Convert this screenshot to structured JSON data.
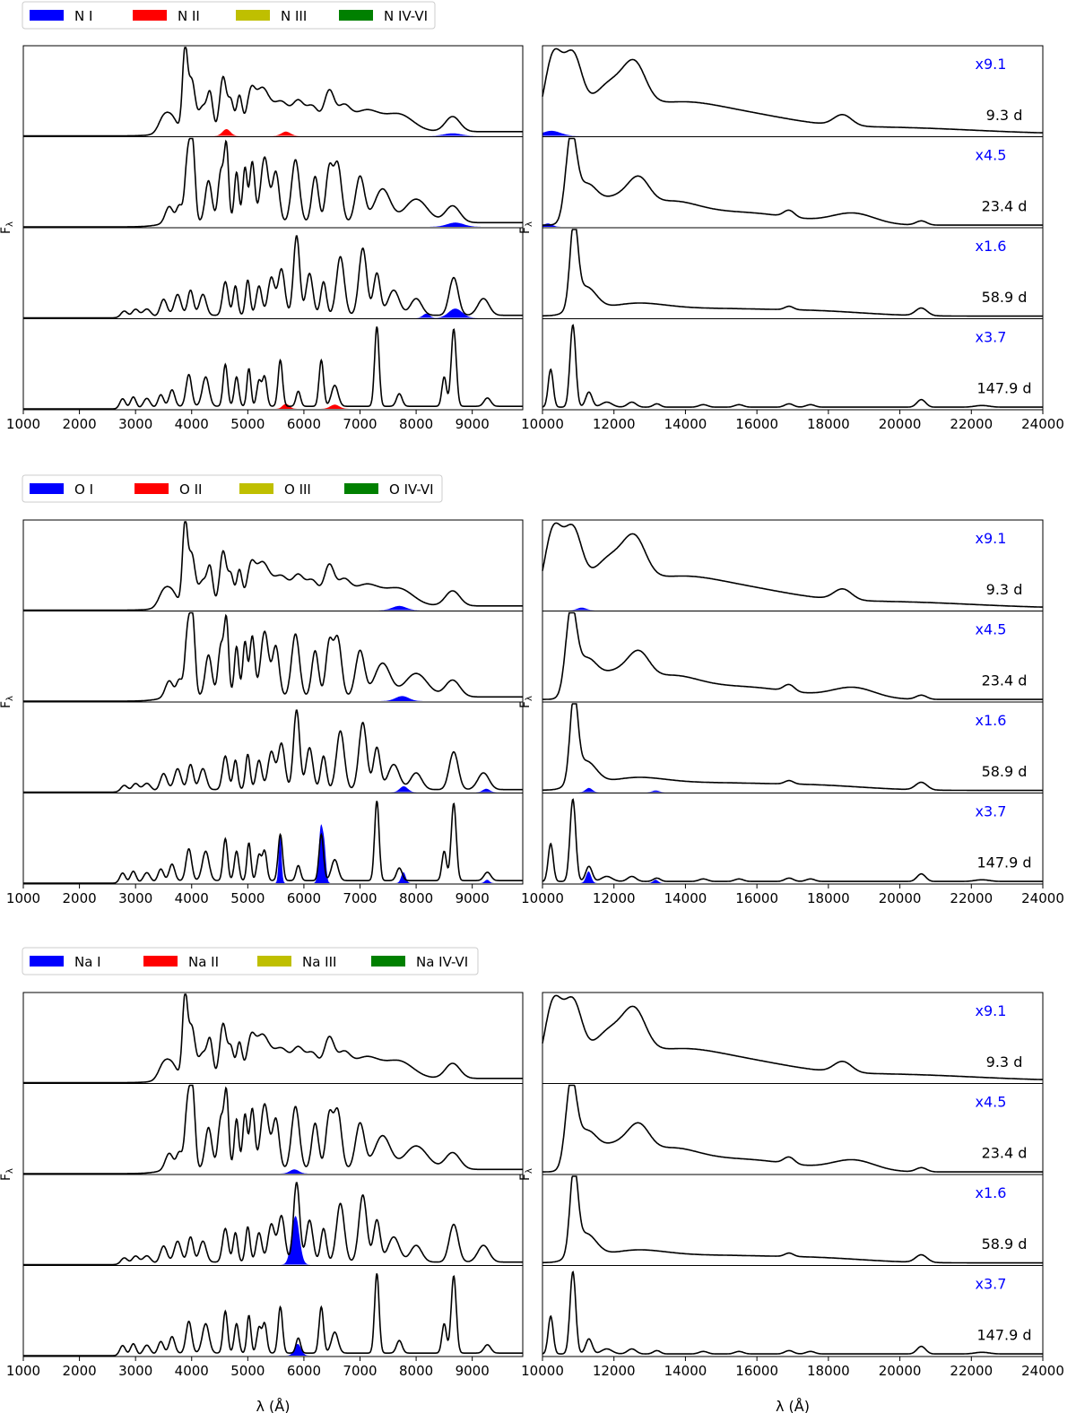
{
  "figure": {
    "y_axis_label": "F",
    "y_axis_label_subscript": "λ",
    "x_axis_label": "λ (Å)",
    "epochs": [
      "9.3 d",
      "23.4 d",
      "58.9 d",
      "147.9 d"
    ],
    "scale_factors": [
      "x9.1",
      "x4.5",
      "x1.6",
      "x3.7"
    ],
    "ion_colors": [
      "#0000ff",
      "#ff0000",
      "#bfbf00",
      "#008000"
    ],
    "scale_label_color": "#0000ff"
  },
  "chart_data": [
    {
      "type": "line",
      "element": "N",
      "legend": [
        "N I",
        "N II",
        "N III",
        "N IV-VI"
      ],
      "x_optical": {
        "lim": [
          1000,
          9900
        ],
        "ticks": [
          1000,
          2000,
          3000,
          4000,
          5000,
          6000,
          7000,
          8000,
          9000
        ]
      },
      "x_ir": {
        "lim": [
          10000,
          24000
        ],
        "ticks": [
          10000,
          12000,
          14000,
          16000,
          18000,
          20000,
          22000,
          24000
        ]
      },
      "ion_contributions": [
        {
          "epoch": "9.3 d",
          "region": "optical",
          "ion": "N II",
          "features": [
            [
              4620,
              70,
              0.08
            ],
            [
              5680,
              80,
              0.05
            ]
          ]
        },
        {
          "epoch": "9.3 d",
          "region": "optical",
          "ion": "N I",
          "features": [
            [
              8650,
              150,
              0.03
            ]
          ]
        },
        {
          "epoch": "9.3 d",
          "region": "ir",
          "ion": "N I",
          "features": [
            [
              10250,
              250,
              0.06
            ]
          ]
        },
        {
          "epoch": "23.4 d",
          "region": "optical",
          "ion": "N I",
          "features": [
            [
              8700,
              150,
              0.05
            ]
          ]
        },
        {
          "epoch": "23.4 d",
          "region": "ir",
          "ion": "N I",
          "features": [
            [
              10150,
              120,
              0.04
            ]
          ]
        },
        {
          "epoch": "58.9 d",
          "region": "optical",
          "ion": "N I",
          "features": [
            [
              8180,
              60,
              0.05
            ],
            [
              8700,
              120,
              0.11
            ]
          ]
        },
        {
          "epoch": "147.9 d",
          "region": "optical",
          "ion": "N II",
          "features": [
            [
              5680,
              60,
              0.06
            ],
            [
              6550,
              80,
              0.05
            ]
          ]
        }
      ]
    },
    {
      "type": "line",
      "element": "O",
      "legend": [
        "O I",
        "O II",
        "O III",
        "O IV-VI"
      ],
      "x_optical": {
        "lim": [
          1000,
          9900
        ],
        "ticks": [
          1000,
          2000,
          3000,
          4000,
          5000,
          6000,
          7000,
          8000,
          9000
        ]
      },
      "x_ir": {
        "lim": [
          10000,
          24000
        ],
        "ticks": [
          10000,
          12000,
          14000,
          16000,
          18000,
          20000,
          22000,
          24000
        ]
      },
      "ion_contributions": [
        {
          "epoch": "9.3 d",
          "region": "optical",
          "ion": "O I",
          "features": [
            [
              7700,
              120,
              0.05
            ]
          ]
        },
        {
          "epoch": "9.3 d",
          "region": "ir",
          "ion": "O I",
          "features": [
            [
              11100,
              120,
              0.03
            ]
          ]
        },
        {
          "epoch": "23.4 d",
          "region": "optical",
          "ion": "O I",
          "features": [
            [
              7750,
              120,
              0.06
            ]
          ]
        },
        {
          "epoch": "58.9 d",
          "region": "optical",
          "ion": "O I",
          "features": [
            [
              7780,
              70,
              0.07
            ],
            [
              9250,
              60,
              0.04
            ]
          ]
        },
        {
          "epoch": "58.9 d",
          "region": "ir",
          "ion": "O I",
          "features": [
            [
              11300,
              90,
              0.05
            ],
            [
              13170,
              90,
              0.02
            ]
          ]
        },
        {
          "epoch": "147.9 d",
          "region": "optical",
          "ion": "O I",
          "features": [
            [
              5577,
              25,
              0.58
            ],
            [
              6300,
              35,
              0.65
            ],
            [
              6364,
              30,
              0.4
            ],
            [
              7774,
              40,
              0.13
            ],
            [
              9265,
              40,
              0.04
            ]
          ]
        },
        {
          "epoch": "147.9 d",
          "region": "ir",
          "ion": "O I",
          "features": [
            [
              11290,
              70,
              0.14
            ],
            [
              13165,
              70,
              0.04
            ]
          ]
        }
      ]
    },
    {
      "type": "line",
      "element": "Na",
      "legend": [
        "Na I",
        "Na II",
        "Na III",
        "Na IV-VI"
      ],
      "x_optical": {
        "lim": [
          1000,
          9900
        ],
        "ticks": [
          1000,
          2000,
          3000,
          4000,
          5000,
          6000,
          7000,
          8000,
          9000
        ]
      },
      "x_ir": {
        "lim": [
          10000,
          24000
        ],
        "ticks": [
          10000,
          12000,
          14000,
          16000,
          18000,
          20000,
          22000,
          24000
        ]
      },
      "ion_contributions": [
        {
          "epoch": "23.4 d",
          "region": "optical",
          "ion": "Na I",
          "features": [
            [
              5830,
              80,
              0.05
            ]
          ]
        },
        {
          "epoch": "58.9 d",
          "region": "optical",
          "ion": "Na I",
          "features": [
            [
              5850,
              70,
              0.58
            ]
          ]
        },
        {
          "epoch": "147.9 d",
          "region": "optical",
          "ion": "Na I",
          "features": [
            [
              5890,
              60,
              0.14
            ]
          ]
        }
      ]
    }
  ]
}
